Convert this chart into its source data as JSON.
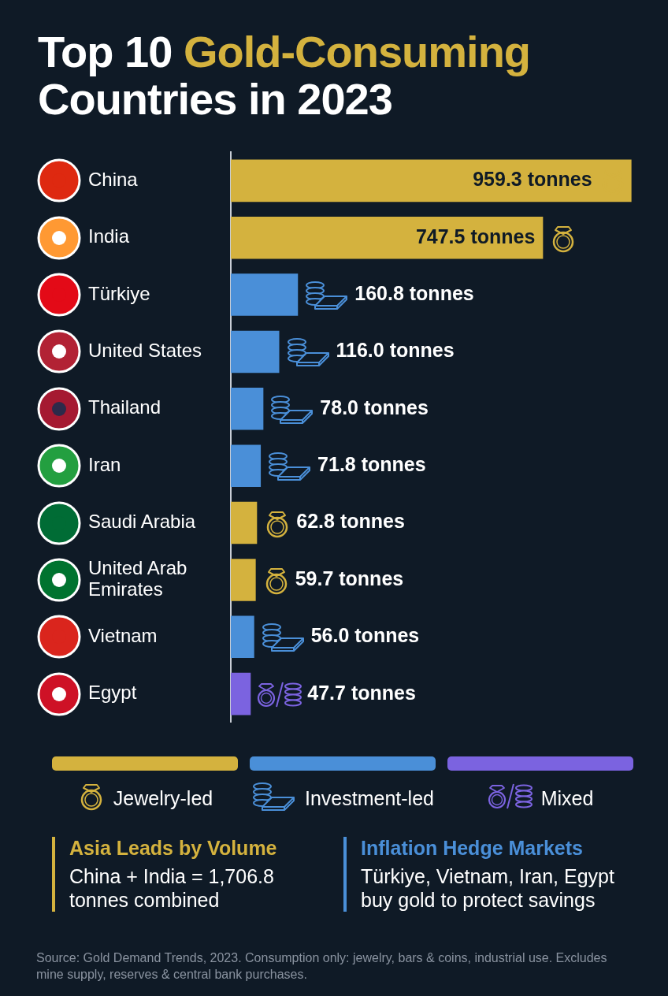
{
  "chart_data": {
    "type": "bar",
    "title": "Top 10 Gold-Consuming Countries in 2023",
    "orientation": "horizontal",
    "stacked": true,
    "legend": "bottom",
    "grid": false,
    "xlim": [
      0,
      960
    ],
    "categories": [
      "China",
      "India",
      "Türkiye",
      "United States",
      "Thailand",
      "Iran",
      "Saudi Arabia",
      "United Arab Emirates",
      "Vietnam",
      "Egypt"
    ],
    "series": [
      {
        "name": "Jewelry-led",
        "color": "#d4b23e",
        "values": [
          959.3,
          747.5,
          null,
          null,
          null,
          null,
          62.8,
          59.7,
          null,
          null
        ],
        "value_labels": [
          "959.3 tonnes",
          "747.5 tonnes",
          null,
          null,
          null,
          null,
          "62.8 tonnes",
          "59.7 tonnes",
          null,
          null
        ]
      },
      {
        "name": "Investment-led",
        "color": "#4a8fd8",
        "values": [
          null,
          null,
          160.8,
          116.0,
          78.0,
          71.8,
          null,
          null,
          56.0,
          null
        ],
        "value_labels": [
          null,
          null,
          "160.8 tonnes",
          "116.0 tonnes",
          "78.0 tonnes",
          "71.8 tonnes",
          null,
          null,
          "56.0 tonnes",
          null
        ]
      },
      {
        "name": "Mixed",
        "color": "#7b63e0",
        "values": [
          null,
          null,
          null,
          null,
          null,
          null,
          null,
          null,
          null,
          47.7
        ],
        "value_labels": [
          null,
          null,
          null,
          null,
          null,
          null,
          null,
          null,
          null,
          "47.7 tonnes"
        ]
      }
    ],
    "annotations": [
      "Asia Leads by Volume",
      "China + India = 1,706.8 tonnes combined",
      "Inflation Hedge Markets",
      "Türkiye, Vietnam, Iran, Egypt buy gold to protect savings",
      "Source: Gold Demand Trends, 2023. Consumption only: jewelry, bars & coins, industrial use. Excludes mine supply, reserves & central bank purchases."
    ]
  }
}
